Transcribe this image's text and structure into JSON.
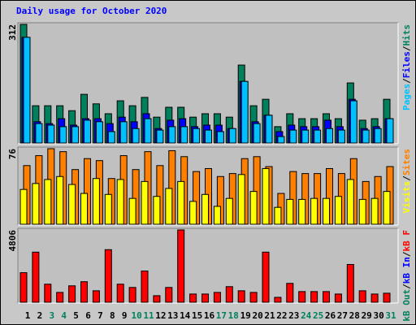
{
  "chart_data": [
    {
      "type": "bar",
      "title": "Daily usage for October 2020",
      "legend_separator": "/",
      "ylim": [
        0,
        312
      ],
      "yticks": [
        312
      ],
      "series": [
        {
          "name": "Hits",
          "color": "#00805c",
          "values": [
            312,
            98,
            98,
            98,
            85,
            128,
            103,
            77,
            111,
            98,
            120,
            68,
            94,
            94,
            68,
            77,
            77,
            68,
            205,
            98,
            115,
            43,
            77,
            64,
            64,
            77,
            64,
            158,
            60,
            64,
            115
          ]
        },
        {
          "name": "Files",
          "color": "#0000ff",
          "values": [
            278,
            56,
            51,
            64,
            47,
            64,
            64,
            51,
            68,
            56,
            77,
            38,
            60,
            64,
            43,
            47,
            47,
            38,
            162,
            56,
            73,
            30,
            47,
            43,
            43,
            60,
            43,
            115,
            38,
            43,
            64
          ]
        },
        {
          "name": "Pages",
          "color": "#00c0ff",
          "values": [
            278,
            51,
            47,
            43,
            43,
            60,
            56,
            30,
            56,
            38,
            64,
            34,
            43,
            43,
            38,
            34,
            30,
            38,
            162,
            51,
            73,
            17,
            34,
            34,
            34,
            38,
            34,
            111,
            34,
            38,
            64
          ]
        }
      ]
    },
    {
      "type": "bar",
      "ylim": [
        0,
        76
      ],
      "yticks": [
        76
      ],
      "series": [
        {
          "name": "Sites",
          "color": "#ff8000",
          "values": [
            59,
            69,
            76,
            73,
            55,
            66,
            64,
            46,
            69,
            55,
            73,
            59,
            74,
            68,
            53,
            56,
            48,
            51,
            66,
            68,
            58,
            31,
            53,
            51,
            51,
            56,
            51,
            66,
            43,
            48,
            58
          ]
        },
        {
          "name": "Visits",
          "color": "#ffff00",
          "values": [
            35,
            41,
            45,
            48,
            40,
            31,
            46,
            30,
            45,
            26,
            43,
            28,
            36,
            43,
            23,
            30,
            18,
            26,
            50,
            33,
            56,
            17,
            25,
            25,
            26,
            26,
            28,
            45,
            25,
            26,
            33
          ]
        }
      ]
    },
    {
      "type": "bar",
      "ylim": [
        0,
        4806
      ],
      "yticks": [
        4806
      ],
      "categories": [
        "1",
        "2",
        "3",
        "4",
        "5",
        "6",
        "7",
        "8",
        "9",
        "10",
        "11",
        "12",
        "13",
        "14",
        "15",
        "16",
        "17",
        "18",
        "19",
        "20",
        "21",
        "22",
        "23",
        "24",
        "25",
        "26",
        "27",
        "28",
        "29",
        "30",
        "31"
      ],
      "category_colors": [
        "#000000",
        "#000000",
        "#00805c",
        "#00805c",
        "#000000",
        "#000000",
        "#000000",
        "#000000",
        "#000000",
        "#00805c",
        "#00805c",
        "#000000",
        "#000000",
        "#000000",
        "#000000",
        "#000000",
        "#00805c",
        "#00805c",
        "#000000",
        "#000000",
        "#000000",
        "#000000",
        "#000000",
        "#00805c",
        "#00805c",
        "#000000",
        "#000000",
        "#000000",
        "#000000",
        "#000000",
        "#00805c"
      ],
      "series": [
        {
          "name": "kB F",
          "color": "#ff0000",
          "values": [
            1966,
            3331,
            1201,
            655,
            1092,
            1365,
            764,
            3495,
            1201,
            983,
            2075,
            437,
            983,
            4806,
            546,
            546,
            655,
            1038,
            764,
            655,
            3331,
            328,
            1256,
            710,
            710,
            710,
            546,
            2512,
            764,
            546,
            601
          ]
        },
        {
          "name": "kB In",
          "color": "#0000ff"
        },
        {
          "name": "kB Out",
          "color": "#00805c"
        }
      ]
    }
  ]
}
